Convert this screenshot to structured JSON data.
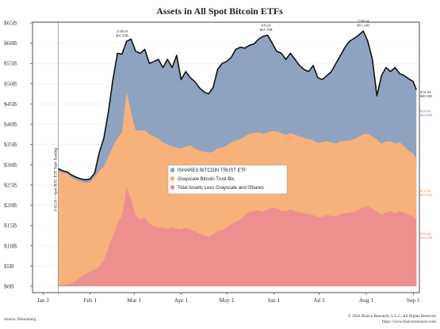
{
  "chart_data": {
    "type": "area",
    "title": "Assets in All Spot Bitcoin ETFs",
    "ylim": [
      0,
      65
    ],
    "y_ticks": [
      "$65B",
      "$60B",
      "$55B",
      "$50B",
      "$45B",
      "$40B",
      "$35B",
      "$30B",
      "$25B",
      "$20B",
      "$15B",
      "$10B",
      "$5B",
      "$0B"
    ],
    "x_ticks": [
      "Jan 1",
      "Feb 1",
      "Mar 1",
      "Apr 1",
      "May 1",
      "Jun 1",
      "Jul 1",
      "Aug 1",
      "Sep 1"
    ],
    "x_tick_days": [
      0,
      31,
      60,
      91,
      121,
      152,
      182,
      213,
      244
    ],
    "x_range_days": [
      -7,
      248
    ],
    "start_marker": {
      "day": 10,
      "label": "1/11/24 = Spot BTC ETF Start Trading"
    },
    "legend": [
      {
        "label": "ISHARES BITCOIN TRUST ETF",
        "color": "#8fa3c0"
      },
      {
        "label": "Grayscale Bitcoin Trust Btc",
        "color": "#f6b27a"
      },
      {
        "label": "Total Assets Less Grayscale and iShares",
        "color": "#ee8f8f"
      }
    ],
    "x": [
      10,
      13,
      16,
      19,
      22,
      25,
      28,
      31,
      34,
      37,
      40,
      43,
      46,
      49,
      52,
      55,
      58,
      61,
      64,
      67,
      70,
      73,
      76,
      79,
      82,
      85,
      88,
      91,
      94,
      97,
      100,
      103,
      106,
      109,
      112,
      115,
      118,
      121,
      124,
      127,
      130,
      133,
      136,
      139,
      142,
      145,
      148,
      151,
      154,
      157,
      160,
      163,
      166,
      169,
      172,
      175,
      178,
      181,
      184,
      187,
      190,
      193,
      196,
      199,
      202,
      205,
      208,
      211,
      214,
      217,
      220,
      223,
      226,
      229,
      232,
      235,
      238,
      241,
      244,
      246
    ],
    "series": [
      {
        "name": "Total Assets Less Grayscale and iShares",
        "color": "#ee8f8f",
        "values": [
          0.3,
          0.4,
          0.5,
          0.8,
          1.5,
          2.3,
          3.0,
          3.6,
          4.1,
          4.8,
          6.5,
          9.5,
          12.5,
          15.5,
          17.5,
          24.5,
          21.5,
          17.5,
          16.5,
          17.0,
          15.5,
          14.8,
          14.5,
          14.5,
          14.0,
          14.6,
          14.2,
          14.0,
          14.5,
          14.0,
          13.5,
          13.0,
          12.6,
          12.2,
          12.8,
          13.6,
          13.8,
          14.5,
          15.3,
          15.9,
          16.5,
          17.5,
          18.3,
          18.6,
          18.8,
          18.4,
          19.0,
          19.5,
          19.2,
          18.7,
          18.5,
          19.0,
          18.6,
          18.2,
          18.0,
          17.8,
          17.6,
          17.0,
          17.2,
          17.6,
          17.4,
          17.2,
          17.8,
          18.0,
          18.2,
          18.3,
          19.0,
          19.5,
          19.8,
          19.2,
          18.5,
          17.5,
          18.2,
          18.6,
          18.0,
          18.5,
          18.2,
          17.6,
          17.2,
          16.5
        ]
      },
      {
        "name": "Grayscale Bitcoin Trust Btc",
        "color": "#f6b27a",
        "values": [
          28.4,
          28.0,
          27.7,
          26.8,
          26.2,
          25.8,
          25.5,
          25.6,
          27.0,
          28.5,
          29.5,
          32.0,
          34.5,
          36.5,
          38.0,
          48.0,
          43.0,
          38.5,
          38.5,
          38.5,
          37.5,
          37.0,
          36.5,
          35.5,
          35.0,
          34.5,
          34.2,
          34.0,
          34.5,
          34.8,
          34.0,
          33.5,
          33.2,
          33.0,
          33.2,
          34.0,
          34.2,
          34.8,
          35.5,
          36.0,
          36.3,
          37.0,
          37.6,
          37.8,
          38.0,
          37.6,
          38.0,
          38.3,
          38.2,
          37.8,
          37.4,
          37.8,
          37.4,
          37.0,
          36.7,
          36.3,
          36.0,
          35.4,
          35.6,
          35.8,
          35.5,
          35.3,
          35.8,
          35.9,
          36.0,
          36.3,
          36.9,
          37.5,
          37.6,
          37.0,
          36.2,
          35.2,
          35.7,
          35.8,
          35.2,
          35.5,
          34.6,
          33.4,
          32.8,
          31.5
        ]
      },
      {
        "name": "ISHARES BITCOIN TRUST ETF",
        "color": "#8fa3c0",
        "values": [
          29.0,
          28.5,
          28.2,
          27.4,
          26.9,
          26.5,
          26.3,
          26.5,
          28.0,
          33.0,
          36.5,
          43.0,
          51.0,
          57.5,
          57.3,
          60.5,
          61.0,
          58.0,
          57.5,
          58.5,
          55.0,
          55.5,
          56.0,
          54.0,
          56.0,
          54.0,
          57.0,
          51.0,
          53.0,
          51.5,
          50.5,
          49.0,
          48.0,
          47.5,
          49.0,
          53.5,
          55.0,
          55.5,
          56.5,
          58.5,
          59.0,
          58.8,
          59.5,
          59.8,
          61.0,
          61.7,
          62.0,
          60.0,
          58.0,
          57.5,
          56.0,
          57.5,
          56.0,
          54.5,
          53.5,
          53.0,
          54.5,
          51.5,
          51.0,
          52.0,
          53.0,
          55.0,
          57.0,
          59.0,
          60.5,
          61.2,
          62.0,
          63.0,
          60.5,
          56.0,
          47.0,
          52.0,
          54.0,
          53.0,
          54.0,
          52.5,
          52.0,
          51.2,
          50.5,
          48.5
        ]
      }
    ],
    "annotations": [
      {
        "day": 52,
        "value": 60.5,
        "date": "2/28/24",
        "amount": "$61.50B"
      },
      {
        "day": 147,
        "value": 62.0,
        "date": "6/6/24",
        "amount": "$61.79B"
      },
      {
        "day": 211,
        "value": 63.0,
        "date": "7/28/24",
        "amount": "$61.10B"
      }
    ],
    "end_labels": [
      {
        "key": "total",
        "line1": "8/31/24",
        "line2": "$48.53B",
        "color": "#222222"
      },
      {
        "key": "ishares",
        "line1": "8/31/24",
        "line2": "$23.41B",
        "color": "#5a7599"
      },
      {
        "key": "gbtc",
        "line1": "8/31/24",
        "line2": "$14.91B",
        "color": "#e8893d"
      },
      {
        "key": "other",
        "line1": "8/31/24",
        "line2": "$17.21B",
        "color": "#e06b6b"
      }
    ]
  },
  "footer": {
    "source": "Source: Bloomberg",
    "copyright": "© 2024 Bianco Research, L.L.C. All Rights Reserved",
    "url": "https://www.biancoresearch.com"
  }
}
